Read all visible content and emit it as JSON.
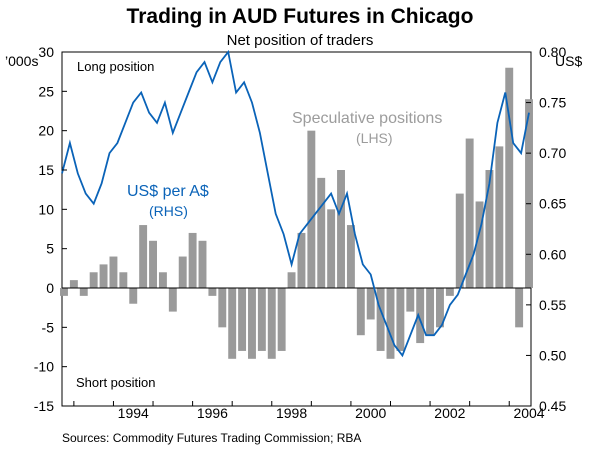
{
  "title": "Trading in AUD Futures in Chicago",
  "subtitle": "Net position of traders",
  "source": "Sources: Commodity Futures Trading Commission; RBA",
  "chart_data": {
    "type": "bar",
    "left_unit": "’000s",
    "right_unit": "US$",
    "left_ylim": [
      -15,
      30
    ],
    "right_ylim": [
      0.45,
      0.8
    ],
    "left_ticks": [
      "30",
      "25",
      "20",
      "15",
      "10",
      "5",
      "0",
      "-5",
      "-10",
      "-15"
    ],
    "right_ticks": [
      "0.80",
      "0.75",
      "0.70",
      "0.65",
      "0.60",
      "0.55",
      "0.50",
      "0.45"
    ],
    "x_ticks": [
      "1994",
      "1996",
      "1998",
      "2000",
      "2002",
      "2004"
    ],
    "xlim": [
      1992.7,
      2004.55
    ],
    "annotations": {
      "top": "Long position",
      "bottom": "Short position"
    },
    "colors": {
      "bars": "#9a9a9a",
      "line": "#0a63b8"
    },
    "series": [
      {
        "name": "Speculative positions",
        "axis_note": "(LHS)",
        "kind": "bar",
        "x": [
          1992.75,
          1993.0,
          1993.25,
          1993.5,
          1993.75,
          1994.0,
          1994.25,
          1994.5,
          1994.75,
          1995.0,
          1995.25,
          1995.5,
          1995.75,
          1996.0,
          1996.25,
          1996.5,
          1996.75,
          1997.0,
          1997.25,
          1997.5,
          1997.75,
          1998.0,
          1998.25,
          1998.5,
          1998.75,
          1999.0,
          1999.25,
          1999.5,
          1999.75,
          2000.0,
          2000.25,
          2000.5,
          2000.75,
          2001.0,
          2001.25,
          2001.5,
          2001.75,
          2002.0,
          2002.25,
          2002.5,
          2002.75,
          2003.0,
          2003.25,
          2003.5,
          2003.75,
          2004.0,
          2004.25,
          2004.5
        ],
        "values": [
          -1,
          1,
          -1,
          2,
          3,
          4,
          2,
          -2,
          8,
          6,
          2,
          -3,
          4,
          7,
          6,
          -1,
          -5,
          -9,
          -8,
          -9,
          -8,
          -9,
          -8,
          2,
          7,
          20,
          14,
          10,
          15,
          8,
          -6,
          -4,
          -8,
          -9,
          -8,
          -3,
          -7,
          -6,
          -5,
          -1,
          12,
          19,
          11,
          15,
          18,
          28,
          -5,
          24
        ]
      },
      {
        "name": "US$ per A$",
        "axis_note": "(RHS)",
        "kind": "line",
        "x": [
          1992.7,
          1992.9,
          1993.1,
          1993.3,
          1993.5,
          1993.7,
          1993.9,
          1994.1,
          1994.3,
          1994.5,
          1994.7,
          1994.9,
          1995.1,
          1995.3,
          1995.5,
          1995.7,
          1995.9,
          1996.1,
          1996.3,
          1996.5,
          1996.7,
          1996.9,
          1997.1,
          1997.3,
          1997.5,
          1997.7,
          1997.9,
          1998.1,
          1998.3,
          1998.5,
          1998.7,
          1998.9,
          1999.1,
          1999.3,
          1999.5,
          1999.7,
          1999.9,
          2000.1,
          2000.3,
          2000.5,
          2000.7,
          2000.9,
          2001.1,
          2001.3,
          2001.5,
          2001.7,
          2001.9,
          2002.1,
          2002.3,
          2002.5,
          2002.7,
          2002.9,
          2003.1,
          2003.3,
          2003.5,
          2003.7,
          2003.9,
          2004.1,
          2004.3,
          2004.5
        ],
        "values": [
          0.68,
          0.71,
          0.68,
          0.66,
          0.65,
          0.67,
          0.7,
          0.71,
          0.73,
          0.75,
          0.76,
          0.74,
          0.73,
          0.75,
          0.72,
          0.74,
          0.76,
          0.78,
          0.79,
          0.77,
          0.79,
          0.8,
          0.76,
          0.77,
          0.75,
          0.72,
          0.68,
          0.64,
          0.62,
          0.59,
          0.62,
          0.63,
          0.64,
          0.65,
          0.66,
          0.64,
          0.66,
          0.62,
          0.59,
          0.58,
          0.55,
          0.53,
          0.51,
          0.5,
          0.52,
          0.54,
          0.52,
          0.52,
          0.53,
          0.55,
          0.56,
          0.58,
          0.6,
          0.63,
          0.67,
          0.73,
          0.76,
          0.71,
          0.7,
          0.74
        ]
      }
    ],
    "labels": {
      "line_label": "US$ per A$",
      "line_note": "(RHS)",
      "bar_label": "Speculative positions",
      "bar_note": "(LHS)"
    }
  }
}
